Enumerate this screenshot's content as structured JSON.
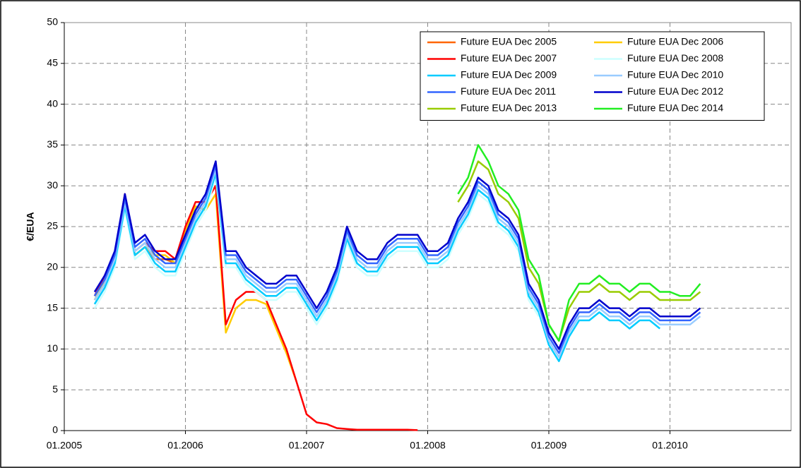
{
  "chart_data": {
    "type": "line",
    "ylabel": "€/EUA",
    "x": [
      "2005-04",
      "2005-05",
      "2005-06",
      "2005-07",
      "2005-08",
      "2005-09",
      "2005-10",
      "2005-11",
      "2005-12",
      "2006-01",
      "2006-02",
      "2006-03",
      "2006-04",
      "2006-05",
      "2006-06",
      "2006-07",
      "2006-08",
      "2006-09",
      "2006-10",
      "2006-11",
      "2006-12",
      "2007-01",
      "2007-02",
      "2007-03",
      "2007-04",
      "2007-05",
      "2007-06",
      "2007-07",
      "2007-08",
      "2007-09",
      "2007-10",
      "2007-11",
      "2007-12",
      "2008-01",
      "2008-02",
      "2008-03",
      "2008-04",
      "2008-05",
      "2008-06",
      "2008-07",
      "2008-08",
      "2008-09",
      "2008-10",
      "2008-11",
      "2008-12",
      "2009-01",
      "2009-02",
      "2009-03",
      "2009-04",
      "2009-05",
      "2009-06",
      "2009-07",
      "2009-08",
      "2009-09",
      "2009-10",
      "2009-11",
      "2009-12",
      "2010-01",
      "2010-02",
      "2010-03",
      "2010-04"
    ],
    "xlim": [
      "2005-01",
      "2011-01"
    ],
    "xticks": [
      {
        "value": "2005-01",
        "label": "01.2005"
      },
      {
        "value": "2006-01",
        "label": "01.2006"
      },
      {
        "value": "2007-01",
        "label": "01.2007"
      },
      {
        "value": "2008-01",
        "label": "01.2008"
      },
      {
        "value": "2009-01",
        "label": "01.2009"
      },
      {
        "value": "2010-01",
        "label": "01.2010"
      }
    ],
    "ylim": [
      0,
      50
    ],
    "yticks": [
      0,
      5,
      10,
      15,
      20,
      25,
      30,
      35,
      40,
      45,
      50
    ],
    "grid": true,
    "legend": "top-right",
    "series": [
      {
        "name": "Future EUA Dec 2005",
        "color": "#ff6600",
        "values": [
          16,
          18,
          20.5,
          28,
          21.5,
          22.5,
          21,
          21,
          20.5,
          null,
          null,
          null,
          null,
          null,
          null,
          null,
          null,
          null,
          null,
          null,
          null,
          null,
          null,
          null,
          null,
          null,
          null,
          null,
          null,
          null,
          null,
          null,
          null,
          null,
          null,
          null,
          null,
          null,
          null,
          null,
          null,
          null,
          null,
          null,
          null,
          null,
          null,
          null,
          null,
          null,
          null,
          null,
          null,
          null,
          null,
          null,
          null,
          null,
          null,
          null,
          null
        ]
      },
      {
        "name": "Future EUA Dec 2006",
        "color": "#ffcc00",
        "values": [
          16,
          18.5,
          21,
          28.5,
          21.5,
          22.5,
          21.5,
          21.5,
          20.5,
          24.5,
          27.5,
          27,
          29,
          12,
          15,
          16,
          16,
          15.5,
          12.5,
          9.5,
          6,
          null,
          null,
          null,
          null,
          null,
          null,
          null,
          null,
          null,
          null,
          null,
          null,
          null,
          null,
          null,
          null,
          null,
          null,
          null,
          null,
          null,
          null,
          null,
          null,
          null,
          null,
          null,
          null,
          null,
          null,
          null,
          null,
          null,
          null,
          null,
          null,
          null,
          null,
          null,
          null
        ]
      },
      {
        "name": "Future EUA Dec 2007",
        "color": "#ff0000",
        "values": [
          16.5,
          19,
          21.5,
          29,
          22,
          23,
          22,
          22,
          21,
          25,
          28,
          28,
          30,
          13,
          16,
          17,
          17,
          16,
          13,
          10,
          6,
          2,
          1,
          0.8,
          0.3,
          0.2,
          0.1,
          0.1,
          0.1,
          0.1,
          0.1,
          0.1,
          0.05,
          null,
          null,
          null,
          null,
          null,
          null,
          null,
          null,
          null,
          null,
          null,
          null,
          null,
          null,
          null,
          null,
          null,
          null,
          null,
          null,
          null,
          null,
          null,
          null,
          null,
          null,
          null,
          null
        ]
      },
      {
        "name": "Future EUA Dec 2008",
        "color": "#ccffff",
        "values": [
          15,
          17,
          20,
          27,
          21,
          22,
          20,
          19,
          19,
          22,
          25,
          27,
          31,
          20,
          20,
          18,
          17,
          16,
          16,
          17,
          17,
          15,
          13,
          15,
          18,
          23,
          20,
          19,
          19,
          21,
          22,
          22,
          22,
          20,
          20,
          21,
          24,
          26,
          29,
          28,
          25,
          24,
          22,
          16,
          14,
          null,
          null,
          null,
          null,
          null,
          null,
          null,
          null,
          null,
          null,
          null,
          null,
          null,
          null,
          null,
          null
        ]
      },
      {
        "name": "Future EUA Dec 2009",
        "color": "#00ccff",
        "values": [
          15.5,
          17.5,
          20.5,
          27.5,
          21.5,
          22.5,
          20.5,
          19.5,
          19.5,
          22.5,
          25.5,
          27.5,
          31.5,
          20.5,
          20.5,
          18.5,
          17.5,
          16.5,
          16.5,
          17.5,
          17.5,
          15.5,
          13.5,
          15.5,
          18.5,
          23.5,
          20.5,
          19.5,
          19.5,
          21.5,
          22.5,
          22.5,
          22.5,
          20.5,
          20.5,
          21.5,
          24.5,
          26.5,
          29.5,
          28.5,
          25.5,
          24.5,
          22.5,
          16.5,
          14.5,
          10.5,
          8.5,
          11.5,
          13.5,
          13.5,
          14.5,
          13.5,
          13.5,
          12.5,
          13.5,
          13.5,
          12.5,
          null,
          null,
          null,
          null
        ]
      },
      {
        "name": "Future EUA Dec 2010",
        "color": "#99ccff",
        "values": [
          16,
          18,
          21,
          28,
          22,
          23,
          21,
          20,
          20,
          23,
          26,
          28,
          32,
          21,
          21,
          19,
          18,
          17,
          17,
          18,
          18,
          16,
          14,
          16,
          19,
          24,
          21,
          20,
          20,
          22,
          23,
          23,
          23,
          21,
          21,
          22,
          25,
          27,
          30,
          29,
          26,
          25,
          23,
          17,
          15,
          11,
          9,
          12,
          14,
          14,
          15,
          14,
          14,
          13,
          14,
          14,
          13,
          13,
          13,
          13,
          14
        ]
      },
      {
        "name": "Future EUA Dec 2011",
        "color": "#3366ff",
        "values": [
          16.5,
          18.5,
          21.5,
          28.5,
          22.5,
          23.5,
          21.5,
          20.5,
          20.5,
          23.5,
          26.5,
          28.5,
          32.5,
          21.5,
          21.5,
          19.5,
          18.5,
          17.5,
          17.5,
          18.5,
          18.5,
          16.5,
          14.5,
          16.5,
          19.5,
          24.5,
          21.5,
          20.5,
          20.5,
          22.5,
          23.5,
          23.5,
          23.5,
          21.5,
          21.5,
          22.5,
          25.5,
          27.5,
          30.5,
          29.5,
          26.5,
          25.5,
          23.5,
          17.5,
          15.5,
          11.5,
          9.5,
          12.5,
          14.5,
          14.5,
          15.5,
          14.5,
          14.5,
          13.5,
          14.5,
          14.5,
          13.5,
          13.5,
          13.5,
          13.5,
          14.5
        ]
      },
      {
        "name": "Future EUA Dec 2012",
        "color": "#0000cc",
        "values": [
          17,
          19,
          22,
          29,
          23,
          24,
          22,
          21,
          21,
          24,
          27,
          29,
          33,
          22,
          22,
          20,
          19,
          18,
          18,
          19,
          19,
          17,
          15,
          17,
          20,
          25,
          22,
          21,
          21,
          23,
          24,
          24,
          24,
          22,
          22,
          23,
          26,
          28,
          31,
          30,
          27,
          26,
          24,
          18,
          16,
          12,
          10,
          13,
          15,
          15,
          16,
          15,
          15,
          14,
          15,
          15,
          14,
          14,
          14,
          14,
          15
        ]
      },
      {
        "name": "Future EUA Dec 2013",
        "color": "#99cc00",
        "values": [
          null,
          null,
          null,
          null,
          null,
          null,
          null,
          null,
          null,
          null,
          null,
          null,
          null,
          null,
          null,
          null,
          null,
          null,
          null,
          null,
          null,
          null,
          null,
          null,
          null,
          null,
          null,
          null,
          null,
          null,
          null,
          null,
          null,
          null,
          null,
          null,
          28,
          30,
          33,
          32,
          29,
          28,
          26,
          20,
          18,
          13,
          11,
          15,
          17,
          17,
          18,
          17,
          17,
          16,
          17,
          17,
          16,
          16,
          16,
          16,
          17
        ]
      },
      {
        "name": "Future EUA Dec 2014",
        "color": "#22ee22",
        "values": [
          null,
          null,
          null,
          null,
          null,
          null,
          null,
          null,
          null,
          null,
          null,
          null,
          null,
          null,
          null,
          null,
          null,
          null,
          null,
          null,
          null,
          null,
          null,
          null,
          null,
          null,
          null,
          null,
          null,
          null,
          null,
          null,
          null,
          null,
          null,
          null,
          29,
          31,
          35,
          33,
          30,
          29,
          27,
          21,
          19,
          13,
          11,
          16,
          18,
          18,
          19,
          18,
          18,
          17,
          18,
          18,
          17,
          17,
          16.5,
          16.5,
          18
        ]
      }
    ]
  }
}
